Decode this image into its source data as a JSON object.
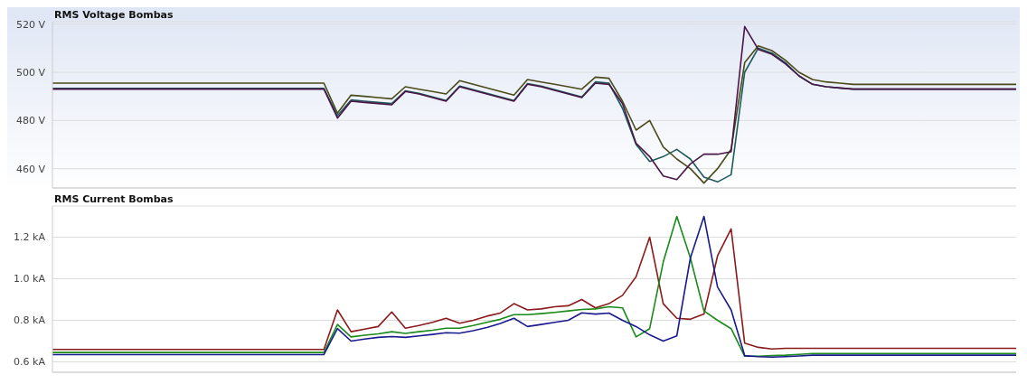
{
  "chart_data": [
    {
      "type": "line",
      "title": "RMS Voltage Bombas",
      "categories": [
        null,
        null,
        null,
        null,
        null,
        null,
        null,
        null,
        null,
        null,
        null,
        null,
        null,
        null,
        null,
        null,
        null,
        null,
        null,
        null,
        null,
        null,
        null,
        null,
        null,
        null,
        null,
        null,
        null,
        null,
        null,
        null,
        null,
        null,
        null,
        null,
        null,
        null,
        null,
        null,
        null,
        null,
        null,
        null,
        null,
        null,
        null,
        null,
        null,
        null,
        null,
        null,
        null,
        null,
        null,
        null,
        null,
        null,
        null,
        null,
        null,
        null,
        null,
        null,
        null,
        null,
        null,
        null,
        null,
        null,
        null,
        null
      ],
      "series": [
        {
          "color": "#4a4a1a",
          "values": [
            495.5,
            495.5,
            495.5,
            495.5,
            495.5,
            495.5,
            495.5,
            495.5,
            495.5,
            495.5,
            495.5,
            495.5,
            495.5,
            495.5,
            495.5,
            495.5,
            495.5,
            495.5,
            495.5,
            495.5,
            495.5,
            483,
            490.5,
            490,
            489.5,
            489,
            494,
            493,
            492,
            491,
            496.5,
            495,
            493.5,
            492,
            490.5,
            497,
            496,
            495,
            494,
            493,
            498,
            497.5,
            488,
            476,
            480,
            469,
            464,
            460,
            454,
            460,
            468,
            504,
            511,
            509,
            505,
            500,
            497,
            496,
            495.5,
            495,
            495,
            495,
            495,
            495,
            495,
            495,
            495,
            495,
            495,
            495,
            495,
            495
          ]
        },
        {
          "color": "#1e5a5a",
          "values": [
            493.3,
            493.3,
            493.3,
            493.3,
            493.3,
            493.3,
            493.3,
            493.3,
            493.3,
            493.3,
            493.3,
            493.3,
            493.3,
            493.3,
            493.3,
            493.3,
            493.3,
            493.3,
            493.3,
            493.3,
            493.3,
            482,
            488.5,
            488,
            487.5,
            487,
            492.3,
            491.3,
            489.8,
            488.3,
            494.3,
            492.8,
            491.3,
            489.8,
            488.3,
            495.3,
            494.3,
            492.8,
            491.3,
            489.8,
            496,
            495.5,
            485,
            470,
            463,
            465,
            468,
            464,
            456.5,
            454.5,
            457.5,
            500,
            510,
            508,
            504,
            498.5,
            495,
            494,
            493.5,
            493,
            493,
            493,
            493,
            493,
            493,
            493,
            493,
            493,
            493,
            493,
            493,
            493
          ]
        },
        {
          "color": "#4a1548",
          "values": [
            493,
            493,
            493,
            493,
            493,
            493,
            493,
            493,
            493,
            493,
            493,
            493,
            493,
            493,
            493,
            493,
            493,
            493,
            493,
            493,
            493,
            481,
            488,
            487.5,
            487,
            486.5,
            492,
            491,
            489.5,
            488,
            494,
            492.5,
            491,
            489.5,
            488,
            495,
            494,
            492.5,
            491,
            489.5,
            495.5,
            495,
            487,
            470.5,
            465,
            457,
            455.5,
            462,
            466,
            466,
            467,
            519,
            509.5,
            507.5,
            503.5,
            498.5,
            495,
            494,
            493.5,
            493,
            493,
            493,
            493,
            493,
            493,
            493,
            493,
            493,
            493,
            493,
            493,
            493
          ]
        }
      ],
      "ylim": [
        452,
        521
      ],
      "yticks": [
        {
          "value": 460,
          "label": "460 V"
        },
        {
          "value": 480,
          "label": "480 V"
        },
        {
          "value": 500,
          "label": "500 V"
        },
        {
          "value": 520,
          "label": "520 V"
        }
      ],
      "grid": "y"
    },
    {
      "type": "line",
      "title": "RMS Current Bombas",
      "categories": [
        null,
        null,
        null,
        null,
        null,
        null,
        null,
        null,
        null,
        null,
        null,
        null,
        null,
        null,
        null,
        null,
        null,
        null,
        null,
        null,
        null,
        null,
        null,
        null,
        null,
        null,
        null,
        null,
        null,
        null,
        null,
        null,
        null,
        null,
        null,
        null,
        null,
        null,
        null,
        null,
        null,
        null,
        null,
        null,
        null,
        null,
        null,
        null,
        null,
        null,
        null,
        null,
        null,
        null,
        null,
        null,
        null,
        null,
        null,
        null,
        null,
        null,
        null,
        null,
        null,
        null,
        null,
        null,
        null,
        null,
        null,
        null
      ],
      "series": [
        {
          "color": "#8b1a1a",
          "values": [
            0.66,
            0.66,
            0.66,
            0.66,
            0.66,
            0.66,
            0.66,
            0.66,
            0.66,
            0.66,
            0.66,
            0.66,
            0.66,
            0.66,
            0.66,
            0.66,
            0.66,
            0.66,
            0.66,
            0.66,
            0.66,
            0.85,
            0.745,
            0.758,
            0.77,
            0.84,
            0.762,
            0.775,
            0.79,
            0.81,
            0.786,
            0.8,
            0.82,
            0.835,
            0.88,
            0.85,
            0.855,
            0.865,
            0.87,
            0.9,
            0.86,
            0.88,
            0.92,
            1.01,
            1.2,
            0.88,
            0.81,
            0.805,
            0.83,
            1.11,
            1.24,
            0.69,
            0.67,
            0.662,
            0.665,
            0.665,
            0.665,
            0.665,
            0.665,
            0.665,
            0.665,
            0.665,
            0.665,
            0.665,
            0.665,
            0.665,
            0.665,
            0.665,
            0.665,
            0.665,
            0.665,
            0.665
          ]
        },
        {
          "color": "#1a8a1a",
          "values": [
            0.645,
            0.645,
            0.645,
            0.645,
            0.645,
            0.645,
            0.645,
            0.645,
            0.645,
            0.645,
            0.645,
            0.645,
            0.645,
            0.645,
            0.645,
            0.645,
            0.645,
            0.645,
            0.645,
            0.645,
            0.645,
            0.78,
            0.72,
            0.728,
            0.735,
            0.745,
            0.737,
            0.745,
            0.752,
            0.762,
            0.762,
            0.775,
            0.79,
            0.805,
            0.827,
            0.827,
            0.832,
            0.838,
            0.845,
            0.852,
            0.855,
            0.865,
            0.86,
            0.72,
            0.76,
            1.08,
            1.3,
            1.1,
            0.845,
            0.8,
            0.76,
            0.627,
            0.627,
            0.63,
            0.632,
            0.636,
            0.64,
            0.64,
            0.64,
            0.64,
            0.64,
            0.64,
            0.64,
            0.64,
            0.64,
            0.64,
            0.64,
            0.64,
            0.64,
            0.64,
            0.64,
            0.64
          ]
        },
        {
          "color": "#1a1a8f",
          "values": [
            0.635,
            0.635,
            0.635,
            0.635,
            0.635,
            0.635,
            0.635,
            0.635,
            0.635,
            0.635,
            0.635,
            0.635,
            0.635,
            0.635,
            0.635,
            0.635,
            0.635,
            0.635,
            0.635,
            0.635,
            0.635,
            0.76,
            0.7,
            0.71,
            0.718,
            0.722,
            0.718,
            0.725,
            0.732,
            0.74,
            0.738,
            0.75,
            0.765,
            0.785,
            0.81,
            0.77,
            0.78,
            0.79,
            0.8,
            0.836,
            0.83,
            0.835,
            0.8,
            0.77,
            0.73,
            0.7,
            0.725,
            1.1,
            1.3,
            0.96,
            0.85,
            0.63,
            0.625,
            0.623,
            0.625,
            0.628,
            0.632,
            0.632,
            0.632,
            0.632,
            0.632,
            0.632,
            0.632,
            0.632,
            0.632,
            0.632,
            0.632,
            0.632,
            0.632,
            0.632,
            0.632,
            0.632
          ]
        }
      ],
      "ylim": [
        0.55,
        1.35
      ],
      "yticks": [
        {
          "value": 0.6,
          "label": "0.6 kA"
        },
        {
          "value": 0.8,
          "label": "0.8 kA"
        },
        {
          "value": 1.0,
          "label": "1.0 kA"
        },
        {
          "value": 1.2,
          "label": "1.2 kA"
        }
      ],
      "grid": "y"
    }
  ]
}
